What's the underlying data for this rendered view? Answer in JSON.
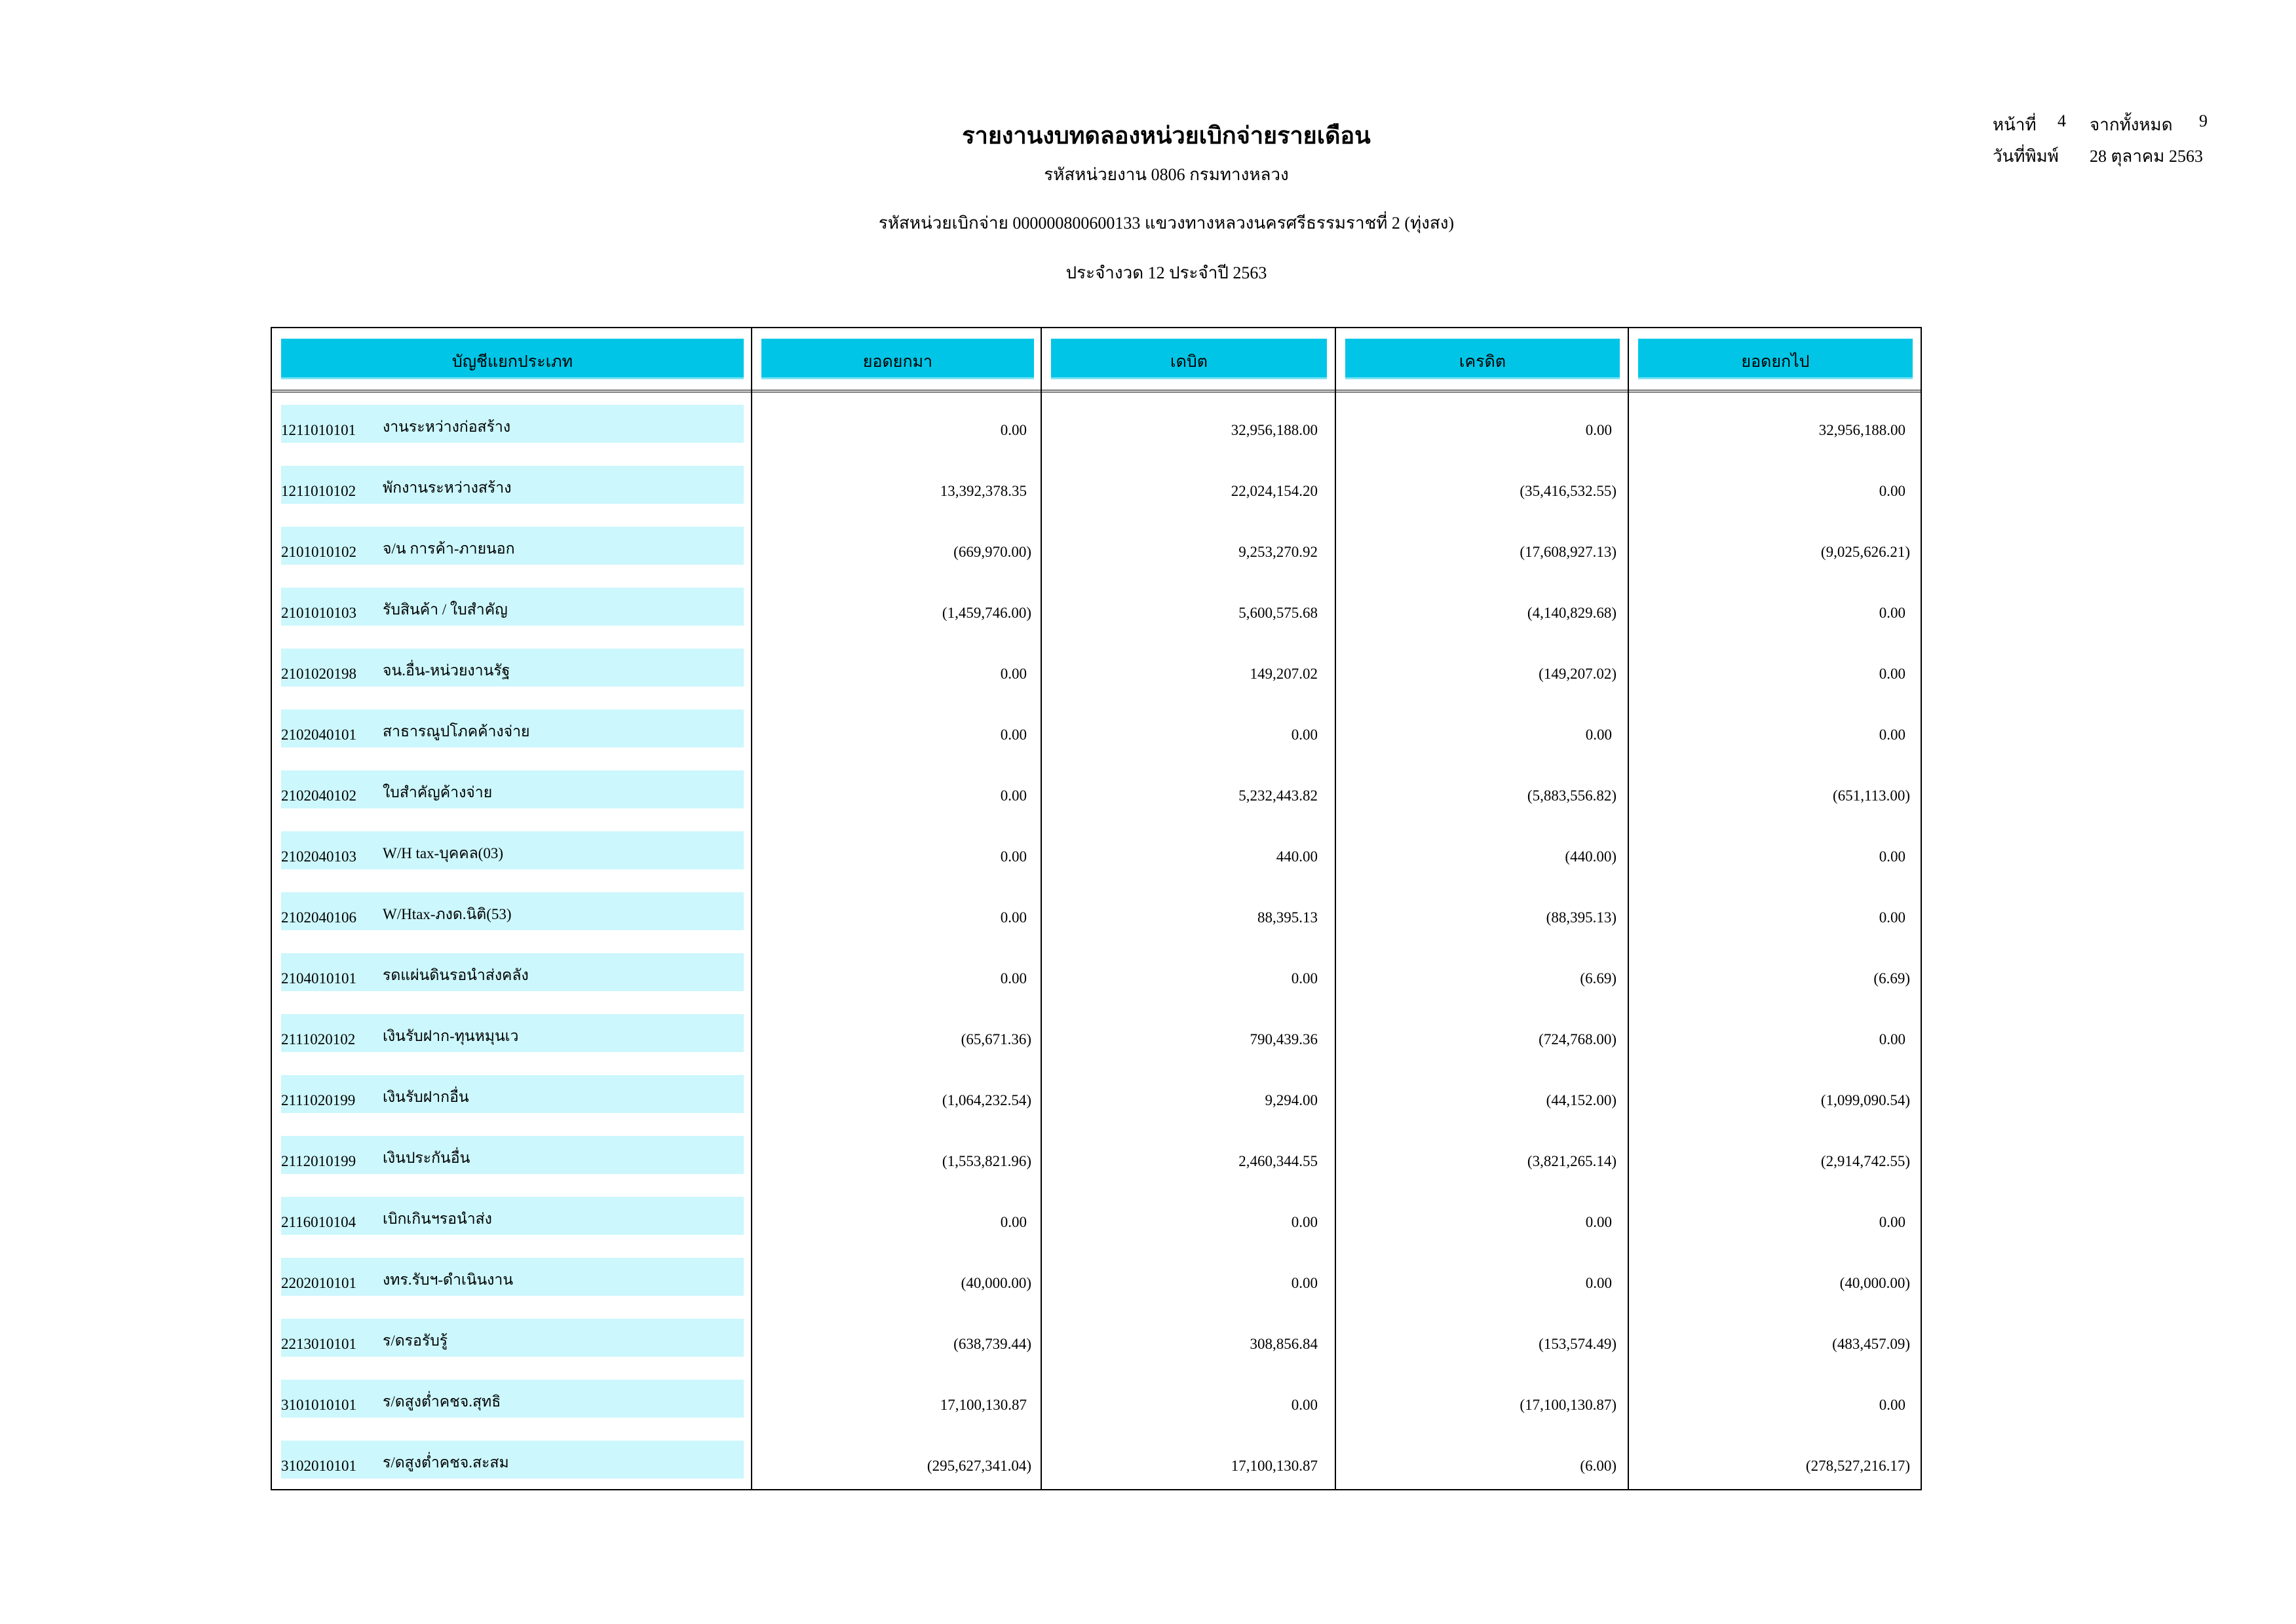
{
  "report": {
    "title": "รายงานงบทดลองหน่วยเบิกจ่ายรายเดือน",
    "agency_line": "รหัสหน่วยงาน 0806 กรมทางหลวง",
    "disbursement_unit_line": "รหัสหน่วยเบิกจ่าย 000000800600133 แขวงทางหลวงนครศรีธรรมราชที่ 2 (ทุ่งสง)",
    "period_line": "ประจำงวด 12 ประจำปี 2563"
  },
  "page_info": {
    "page_label": "หน้าที่",
    "page_number": "4",
    "total_label": "จากทั้งหมด",
    "total_pages": "9",
    "print_date_label": "วันที่พิมพ์",
    "print_date": "28 ตุลาคม 2563"
  },
  "table": {
    "columns": [
      "บัญชีแยกประเภท",
      "ยอดยกมา",
      "เดบิต",
      "เครดิต",
      "ยอดยกไป"
    ],
    "colors": {
      "header_bg": "#00c5e6",
      "label_bg": "#ccf7fc"
    },
    "rows": [
      {
        "code": "1211010101",
        "name": "งานระหว่างก่อสร้าง",
        "opening": "0.00",
        "debit": "32,956,188.00",
        "credit": "0.00",
        "closing": "32,956,188.00"
      },
      {
        "code": "1211010102",
        "name": "พักงานระหว่างสร้าง",
        "opening": "13,392,378.35",
        "debit": "22,024,154.20",
        "credit": "(35,416,532.55)",
        "closing": "0.00"
      },
      {
        "code": "2101010102",
        "name": "จ/น การค้า-ภายนอก",
        "opening": "(669,970.00)",
        "debit": "9,253,270.92",
        "credit": "(17,608,927.13)",
        "closing": "(9,025,626.21)"
      },
      {
        "code": "2101010103",
        "name": "รับสินค้า / ใบสำคัญ",
        "opening": "(1,459,746.00)",
        "debit": "5,600,575.68",
        "credit": "(4,140,829.68)",
        "closing": "0.00"
      },
      {
        "code": "2101020198",
        "name": "จน.อื่น-หน่วยงานรัฐ",
        "opening": "0.00",
        "debit": "149,207.02",
        "credit": "(149,207.02)",
        "closing": "0.00"
      },
      {
        "code": "2102040101",
        "name": "สาธารณูปโภคค้างจ่าย",
        "opening": "0.00",
        "debit": "0.00",
        "credit": "0.00",
        "closing": "0.00"
      },
      {
        "code": "2102040102",
        "name": "ใบสำคัญค้างจ่าย",
        "opening": "0.00",
        "debit": "5,232,443.82",
        "credit": "(5,883,556.82)",
        "closing": "(651,113.00)"
      },
      {
        "code": "2102040103",
        "name": "W/H tax-บุคคล(03)",
        "opening": "0.00",
        "debit": "440.00",
        "credit": "(440.00)",
        "closing": "0.00"
      },
      {
        "code": "2102040106",
        "name": "W/Htax-ภงด.นิติ(53)",
        "opening": "0.00",
        "debit": "88,395.13",
        "credit": "(88,395.13)",
        "closing": "0.00"
      },
      {
        "code": "2104010101",
        "name": "รดแผ่นดินรอนำส่งคลัง",
        "opening": "0.00",
        "debit": "0.00",
        "credit": "(6.69)",
        "closing": "(6.69)"
      },
      {
        "code": "2111020102",
        "name": "เงินรับฝาก-ทุนหมุนเว",
        "opening": "(65,671.36)",
        "debit": "790,439.36",
        "credit": "(724,768.00)",
        "closing": "0.00"
      },
      {
        "code": "2111020199",
        "name": "เงินรับฝากอื่น",
        "opening": "(1,064,232.54)",
        "debit": "9,294.00",
        "credit": "(44,152.00)",
        "closing": "(1,099,090.54)"
      },
      {
        "code": "2112010199",
        "name": "เงินประกันอื่น",
        "opening": "(1,553,821.96)",
        "debit": "2,460,344.55",
        "credit": "(3,821,265.14)",
        "closing": "(2,914,742.55)"
      },
      {
        "code": "2116010104",
        "name": "เบิกเกินฯรอนำส่ง",
        "opening": "0.00",
        "debit": "0.00",
        "credit": "0.00",
        "closing": "0.00"
      },
      {
        "code": "2202010101",
        "name": "งทร.รับฯ-ดำเนินงาน",
        "opening": "(40,000.00)",
        "debit": "0.00",
        "credit": "0.00",
        "closing": "(40,000.00)"
      },
      {
        "code": "2213010101",
        "name": "ร/ดรอรับรู้",
        "opening": "(638,739.44)",
        "debit": "308,856.84",
        "credit": "(153,574.49)",
        "closing": "(483,457.09)"
      },
      {
        "code": "3101010101",
        "name": "ร/ดสูงต่ำคชจ.สุทธิ",
        "opening": "17,100,130.87",
        "debit": "0.00",
        "credit": "(17,100,130.87)",
        "closing": "0.00"
      },
      {
        "code": "3102010101",
        "name": "ร/ดสูงต่ำคชจ.สะสม",
        "opening": "(295,627,341.04)",
        "debit": "17,100,130.87",
        "credit": "(6.00)",
        "closing": "(278,527,216.17)"
      }
    ]
  }
}
